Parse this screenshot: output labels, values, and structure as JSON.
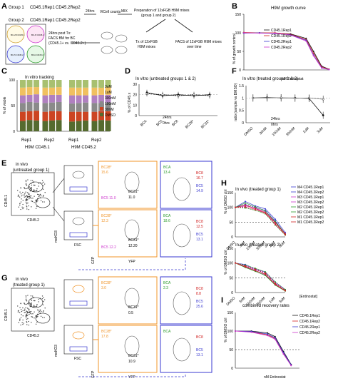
{
  "panels": {
    "A": {
      "label": "A",
      "group1": "Group 1",
      "rep1": "CD45.1Rep1",
      "rep2": "CD45.2Rep2",
      "group2": "Group 2",
      "group2_rep1": "CD45.1Rep1",
      "group2_rep2": "CD45.2Rep2",
      "arrow_24hrs": "24hrs",
      "vicell": "ViCell counts",
      "mix": "MIX",
      "prep_line1": "Preparation of 12xFGB H9M mixes",
      "prep_line2": "(group 1 and group 2)",
      "tx_line1": "Tx of 12xFGB",
      "tx_line2": "H9M mixes",
      "facs_line1": "FACS of 12xFGB H9M mixes",
      "facs_line2": "over time",
      "post_line1": "24hrs post Tx:",
      "post_line2": "FACS BM for BC",
      "post_line3": "(CD45.1+ vs. CD45.2+)",
      "circle_labels": [
        "BC-28 CD45.1",
        "BC-8 CD45.1",
        "BC-5 CD45.2",
        "BCA CD45.2"
      ]
    },
    "B": {
      "label": "B",
      "title": "H9M growth curve",
      "ylabel": "% of growth control",
      "xlabel": "nM Entinostat",
      "legend": [
        "CD45.1Rep1",
        "CD45.1Rep2",
        "CD45.2Rep1",
        "CD45.2Rep2"
      ]
    },
    "C": {
      "label": "C",
      "title": "In vitro tracking",
      "ylabel": "% of viable",
      "legend": [
        "3uM",
        "1uM",
        "300nM",
        "100nM",
        "30nM",
        "DMSO"
      ],
      "group_labels": [
        "Rep1",
        "Rep2",
        "Rep1",
        "Rep2"
      ],
      "bottom_labels": [
        "H9M CD45.1",
        "H9M CD45.2"
      ]
    },
    "D": {
      "label": "D",
      "title": "In vitro (untreated groups 1 & 2)",
      "ylabel": "% of CD45.x",
      "legend": [
        "24hrs",
        "0hrs"
      ],
      "categories": [
        "BCA",
        "BC5",
        "BC8",
        "BC28*",
        "BC31*"
      ]
    },
    "E": {
      "label": "E",
      "title_line1": "in vivo",
      "title_line2": "(untreated group 1)",
      "y_cd451": "CD45.1",
      "x_cd452": "CD45.2",
      "mekO3": "meKO3",
      "fsc": "FSC",
      "gfp": "GFP",
      "yfp": "YFP",
      "orange_gate_label_top": "BC28*",
      "orange_gate_val_top": "15.6",
      "orange_gate_label_bot": "BC28*",
      "orange_gate_val_bot": "12.3",
      "bc5_magenta_top": "BC5 11.0",
      "bc31_top": "BC31*",
      "bc31_top_val": "11.0",
      "bc31_bot": "BC31*",
      "bc31_bot_val": "12.20",
      "bc5_magenta_bot": "BC5 12.2",
      "bca_top": "BCA",
      "bca_top_val": "13.4",
      "bc8_top": "BC8",
      "bc8_top_val": "16.7",
      "bc5_top": "BC5",
      "bc5_top_val": "14.9",
      "bca_bot": "BCA",
      "bca_bot_val": "18.6",
      "bc8_bot": "BC8",
      "bc8_bot_val": "12.5",
      "bc5_bot": "BC5",
      "bc5_bot_val": "13.1"
    },
    "F": {
      "label": "F",
      "title": "In vitro (treated groups 1 & 2)",
      "ylabel": "ratio (sample vs DMSO)",
      "legend": [
        "24hrs",
        "0hrs"
      ],
      "categories": [
        "DMSO",
        "30nM",
        "100nM",
        "300nM",
        "1uM",
        "3uM"
      ]
    },
    "G": {
      "label": "G",
      "title_line1": "in vivo",
      "title_line2": "(treated group 1)",
      "y_cd451": "CD45.1",
      "x_cd452": "CD45.2",
      "mekO3": "meKO3",
      "fsc": "FSC",
      "gfp": "GFP",
      "yfp": "YFP",
      "bc28_top": "BC28*",
      "bc28_top_val": "3.0",
      "bc31_top": "BC31*",
      "bc31_top_val": "0.5",
      "bc28_bot": "BC28*",
      "bc28_bot_val": "17.8",
      "bc31_bot": "BC31*",
      "bc31_bot_val": "10.9",
      "bca_top": "BCA",
      "bca_top_val": "2.3",
      "bc8_top": "BC8",
      "bc8_top_val": "8.8",
      "bc5_top": "BC5",
      "bc5_top_val": "25.6",
      "bca_bot": "BCA",
      "bca_bot_val": "",
      "bc8_bot": "BC8",
      "bc8_bot_val": "",
      "bc5_bot": "BC5",
      "bc5_bot_val": "13.1"
    },
    "H": {
      "label": "H",
      "title1": "In vivo (treated group 1)",
      "title2": "In vivo (treated group 2)",
      "ylabel": "% of DMSO ctrl",
      "xlabel": "[Entinostat]",
      "categories": [
        "DMSO",
        "3nM",
        "100nM",
        "300nM",
        "1uM",
        "3uM"
      ],
      "legend": [
        "M4 CD45.1Rep1",
        "M4 CD45.2Rep2",
        "M3 CD45.1Rep1",
        "M3 CD45.2Rep2",
        "M2 CD45.1Rep1",
        "M2 CD45.2Rep2",
        "M1 CD45.1Rep1",
        "M1 CD45.2Rep2"
      ]
    },
    "I": {
      "label": "I",
      "title": "combined recovery rates",
      "ylabel": "% of DMSO ctrl",
      "xlabel": "nM Entinostat",
      "legend": [
        "CD45.1Rep1",
        "CD45.1Rep2",
        "CD45.2Rep1",
        "CD45.2Rep2"
      ]
    }
  },
  "colors": {
    "black": "#111111",
    "blue": "#3a3ad0",
    "red": "#d02020",
    "magenta": "#cc33cc",
    "orange": "#f0952a",
    "green": "#2a9a2a",
    "gray": "#888888"
  },
  "chart_data": [
    {
      "type": "line",
      "title": "H9M growth curve",
      "xlabel": "nM Entinostat",
      "ylabel": "% of growth control",
      "xscale": "log",
      "x": [
        0.1,
        1,
        10,
        100,
        1000,
        3000,
        10000,
        30000
      ],
      "series": [
        {
          "name": "CD45.1Rep1",
          "values": [
            100,
            100,
            99,
            97,
            85,
            50,
            10,
            2
          ]
        },
        {
          "name": "CD45.1Rep2",
          "values": [
            101,
            100,
            100,
            96,
            82,
            45,
            8,
            2
          ]
        },
        {
          "name": "CD45.2Rep1",
          "values": [
            99,
            100,
            98,
            95,
            80,
            40,
            6,
            1
          ]
        },
        {
          "name": "CD45.2Rep2",
          "values": [
            100,
            99,
            99,
            94,
            78,
            38,
            5,
            1
          ]
        }
      ],
      "ylim": [
        0,
        150
      ]
    },
    {
      "type": "bar",
      "title": "In vitro tracking",
      "ylabel": "% of viable",
      "categories": [
        "Rep1-a",
        "Rep1-b",
        "Rep1-c",
        "Rep2-a",
        "Rep2-b",
        "Rep2-c",
        "Rep1-d",
        "Rep1-e",
        "Rep1-f",
        "Rep2-d",
        "Rep2-e",
        "Rep2-f"
      ],
      "series": [
        {
          "name": "DMSO",
          "values": [
            20,
            22,
            21,
            20,
            21,
            22,
            19,
            20,
            21,
            20,
            22,
            21
          ]
        },
        {
          "name": "30nM",
          "values": [
            18,
            17,
            19,
            18,
            18,
            17,
            19,
            18,
            17,
            18,
            17,
            18
          ]
        },
        {
          "name": "100nM",
          "values": [
            17,
            18,
            16,
            17,
            17,
            18,
            16,
            17,
            18,
            17,
            16,
            17
          ]
        },
        {
          "name": "300nM",
          "values": [
            15,
            14,
            16,
            15,
            15,
            14,
            16,
            15,
            14,
            15,
            16,
            15
          ]
        },
        {
          "name": "1uM",
          "values": [
            15,
            15,
            14,
            15,
            14,
            15,
            15,
            15,
            15,
            15,
            14,
            15
          ]
        },
        {
          "name": "3uM",
          "values": [
            15,
            14,
            14,
            15,
            15,
            14,
            15,
            15,
            15,
            15,
            15,
            14
          ]
        }
      ],
      "ylim": [
        0,
        100
      ]
    },
    {
      "type": "line",
      "title": "In vitro (untreated groups 1 & 2)",
      "ylabel": "% of CD45.x",
      "categories": [
        "BCA",
        "BC5",
        "BC8",
        "BC28*",
        "BC31*"
      ],
      "series": [
        {
          "name": "24hrs",
          "values": [
            22,
            19,
            20,
            19,
            20
          ]
        },
        {
          "name": "0hrs",
          "values": [
            21,
            20,
            19,
            20,
            19
          ]
        }
      ],
      "ylim": [
        0,
        30
      ]
    },
    {
      "type": "line",
      "title": "In vitro (treated groups 1 & 2)",
      "ylabel": "ratio (sample vs DMSO)",
      "categories": [
        "DMSO",
        "30nM",
        "100nM",
        "300nM",
        "1uM",
        "3uM"
      ],
      "series": [
        {
          "name": "24hrs",
          "values": [
            1.0,
            1.02,
            1.0,
            1.0,
            0.98,
            0.3
          ]
        },
        {
          "name": "0hrs",
          "values": [
            1.0,
            1.0,
            1.01,
            0.99,
            1.0,
            0.95
          ]
        }
      ],
      "ylim": [
        0,
        1.5
      ]
    },
    {
      "type": "line",
      "title": "In vivo (treated group 1)",
      "ylabel": "% of DMSO ctrl",
      "categories": [
        "DMSO",
        "3nM",
        "100nM",
        "300nM",
        "1uM",
        "3uM"
      ],
      "series": [
        {
          "name": "M4 CD45.1Rep1",
          "values": [
            100,
            120,
            105,
            95,
            60,
            15
          ]
        },
        {
          "name": "M4 CD45.2Rep2",
          "values": [
            100,
            110,
            100,
            90,
            55,
            10
          ]
        },
        {
          "name": "M3 CD45.1Rep1",
          "values": [
            100,
            105,
            98,
            85,
            50,
            12
          ]
        },
        {
          "name": "M3 CD45.2Rep2",
          "values": [
            100,
            100,
            95,
            80,
            45,
            8
          ]
        },
        {
          "name": "M2 CD45.1Rep1",
          "values": [
            100,
            115,
            102,
            88,
            52,
            10
          ]
        },
        {
          "name": "M2 CD45.2Rep2",
          "values": [
            100,
            98,
            90,
            78,
            40,
            6
          ]
        },
        {
          "name": "M1 CD45.1Rep1",
          "values": [
            100,
            108,
            96,
            82,
            48,
            9
          ]
        },
        {
          "name": "M1 CD45.2Rep2",
          "values": [
            100,
            102,
            92,
            80,
            42,
            7
          ]
        }
      ],
      "ylim": [
        0,
        150
      ]
    },
    {
      "type": "line",
      "title": "In vivo (treated group 2)",
      "ylabel": "% of DMSO ctrl",
      "categories": [
        "DMSO",
        "3nM",
        "100nM",
        "300nM",
        "1uM",
        "3uM"
      ],
      "series": [
        {
          "name": "M4 CD45.1Rep1",
          "values": [
            100,
            95,
            80,
            70,
            35,
            10
          ]
        },
        {
          "name": "M4 CD45.2Rep2",
          "values": [
            100,
            90,
            78,
            65,
            30,
            8
          ]
        },
        {
          "name": "M3 CD45.1Rep1",
          "values": [
            100,
            88,
            75,
            60,
            28,
            6
          ]
        },
        {
          "name": "M3 CD45.2Rep2",
          "values": [
            100,
            92,
            80,
            68,
            33,
            9
          ]
        },
        {
          "name": "M2 CD45.1Rep1",
          "values": [
            100,
            85,
            72,
            58,
            25,
            5
          ]
        },
        {
          "name": "M2 CD45.2Rep2",
          "values": [
            100,
            93,
            82,
            70,
            36,
            10
          ]
        },
        {
          "name": "M1 CD45.1Rep1",
          "values": [
            100,
            87,
            74,
            62,
            27,
            6
          ]
        },
        {
          "name": "M1 CD45.2Rep2",
          "values": [
            100,
            90,
            79,
            66,
            31,
            7
          ]
        }
      ],
      "ylim": [
        0,
        150
      ]
    },
    {
      "type": "line",
      "title": "combined recovery rates",
      "xlabel": "nM Entinostat",
      "ylabel": "% of DMSO ctrl",
      "xscale": "log",
      "x": [
        1,
        10,
        100,
        300,
        1000,
        3000
      ],
      "series": [
        {
          "name": "CD45.1Rep1",
          "values": [
            100,
            100,
            95,
            85,
            45,
            10
          ]
        },
        {
          "name": "CD45.1Rep2",
          "values": [
            100,
            98,
            90,
            80,
            40,
            8
          ]
        },
        {
          "name": "CD45.2Rep1",
          "values": [
            100,
            99,
            92,
            82,
            42,
            9
          ]
        },
        {
          "name": "CD45.2Rep2",
          "values": [
            100,
            97,
            88,
            78,
            38,
            7
          ]
        }
      ],
      "ylim": [
        0,
        150
      ]
    }
  ]
}
